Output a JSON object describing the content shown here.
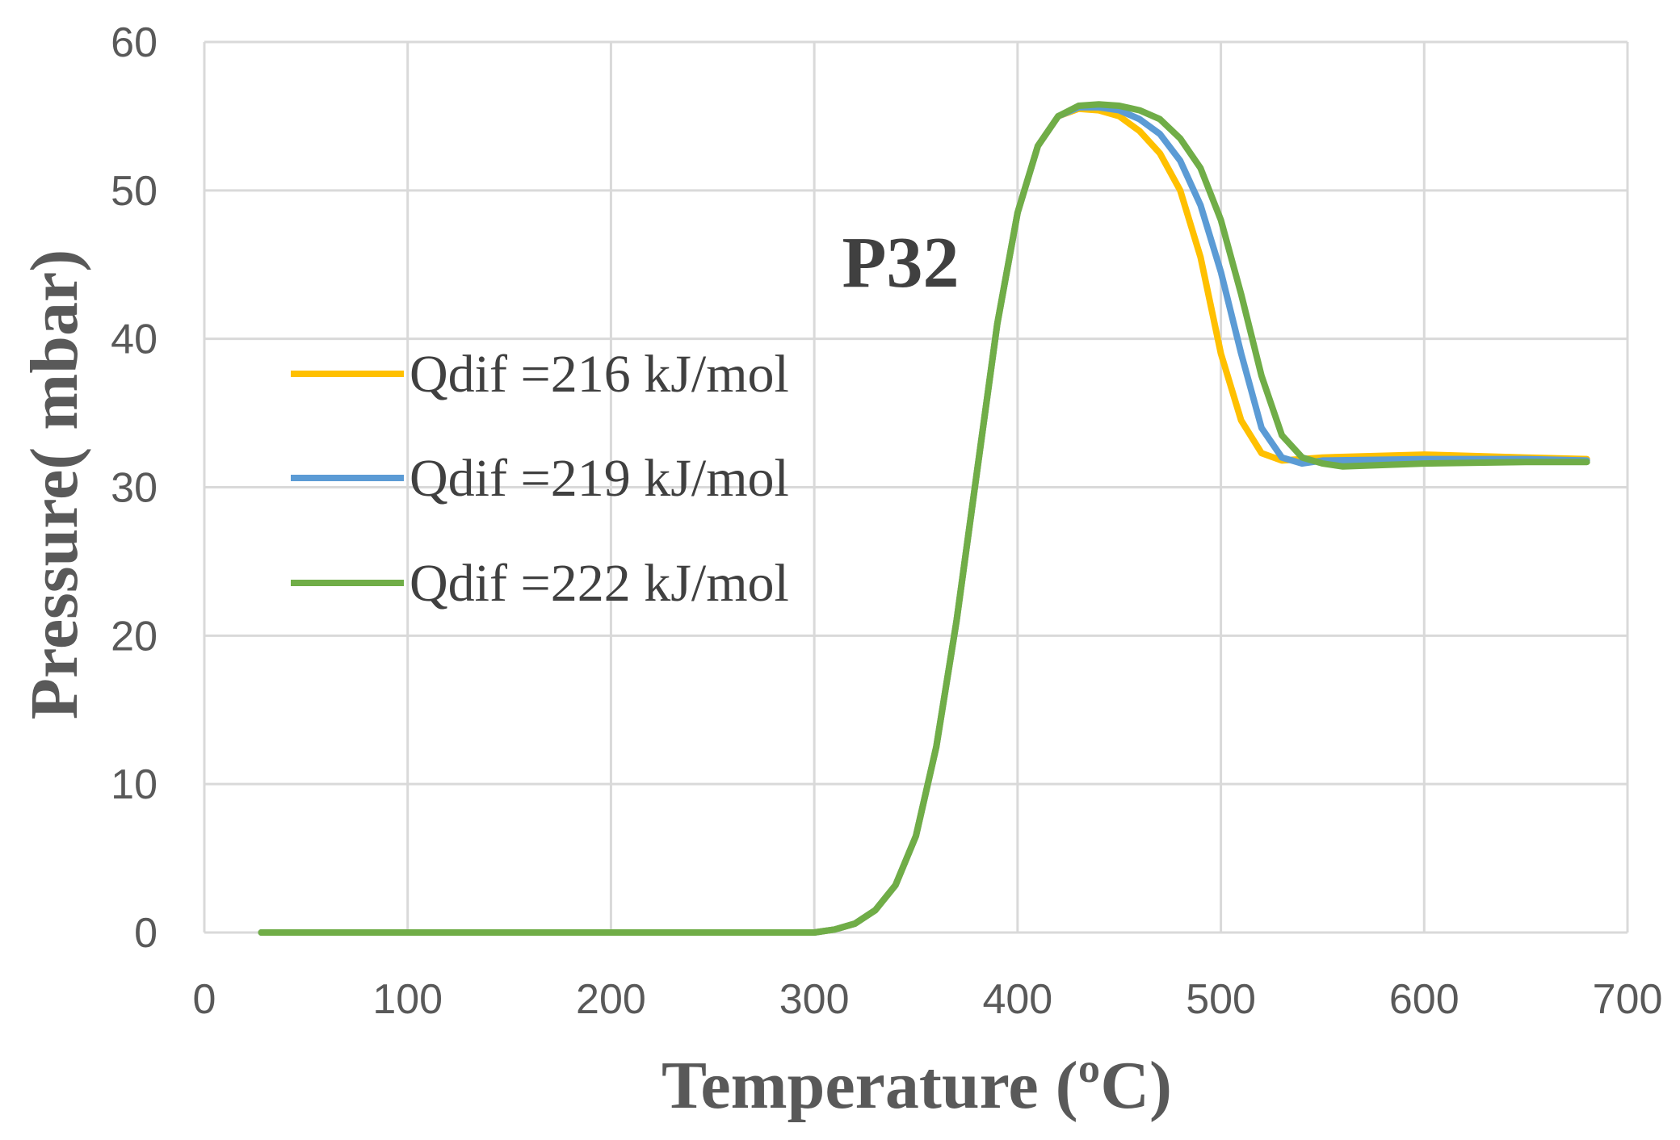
{
  "chart_data": {
    "type": "line",
    "title": "",
    "annotation": "P32",
    "xlabel": "Temperature (ºC)",
    "ylabel": "Pressure( mbar)",
    "xlim": [
      0,
      700
    ],
    "ylim": [
      0,
      60
    ],
    "xticks": [
      0,
      100,
      200,
      300,
      400,
      500,
      600,
      700
    ],
    "yticks": [
      0,
      10,
      20,
      30,
      40,
      50,
      60
    ],
    "grid": true,
    "legend_position": "center-left",
    "series": [
      {
        "name": "Qdif =216 kJ/mol",
        "color": "#FFC000",
        "x": [
          28,
          100,
          200,
          300,
          310,
          320,
          330,
          340,
          350,
          360,
          370,
          380,
          390,
          400,
          410,
          420,
          430,
          440,
          450,
          460,
          470,
          480,
          490,
          500,
          510,
          520,
          530,
          540,
          550,
          600,
          650,
          680
        ],
        "y": [
          0,
          0,
          0,
          0,
          0.2,
          0.6,
          1.5,
          3.2,
          6.5,
          12.5,
          21,
          31,
          41,
          48.5,
          53,
          55,
          55.5,
          55.4,
          55,
          54,
          52.5,
          50,
          45.5,
          39,
          34.5,
          32.3,
          31.8,
          31.9,
          32,
          32.2,
          32,
          31.9
        ]
      },
      {
        "name": "Qdif =219 kJ/mol",
        "color": "#5B9BD5",
        "x": [
          28,
          100,
          200,
          300,
          310,
          320,
          330,
          340,
          350,
          360,
          370,
          380,
          390,
          400,
          410,
          420,
          430,
          440,
          450,
          460,
          470,
          480,
          490,
          500,
          510,
          520,
          530,
          540,
          550,
          600,
          650,
          680
        ],
        "y": [
          0,
          0,
          0,
          0,
          0.2,
          0.6,
          1.5,
          3.2,
          6.5,
          12.5,
          21,
          31,
          41,
          48.5,
          53,
          55,
          55.6,
          55.6,
          55.4,
          54.8,
          53.8,
          52,
          49,
          44.5,
          39,
          34,
          32,
          31.6,
          31.8,
          31.9,
          31.9,
          31.8
        ]
      },
      {
        "name": "Qdif =222 kJ/mol",
        "color": "#70AD47",
        "x": [
          28,
          100,
          200,
          300,
          310,
          320,
          330,
          340,
          350,
          360,
          370,
          380,
          390,
          400,
          410,
          420,
          430,
          440,
          450,
          460,
          470,
          480,
          490,
          500,
          510,
          520,
          530,
          540,
          550,
          560,
          600,
          650,
          680
        ],
        "y": [
          0,
          0,
          0,
          0,
          0.2,
          0.6,
          1.5,
          3.2,
          6.5,
          12.5,
          21,
          31,
          41,
          48.5,
          53,
          55,
          55.7,
          55.8,
          55.7,
          55.4,
          54.8,
          53.5,
          51.5,
          48,
          43,
          37.5,
          33.5,
          32,
          31.6,
          31.4,
          31.6,
          31.7,
          31.7
        ]
      }
    ]
  }
}
